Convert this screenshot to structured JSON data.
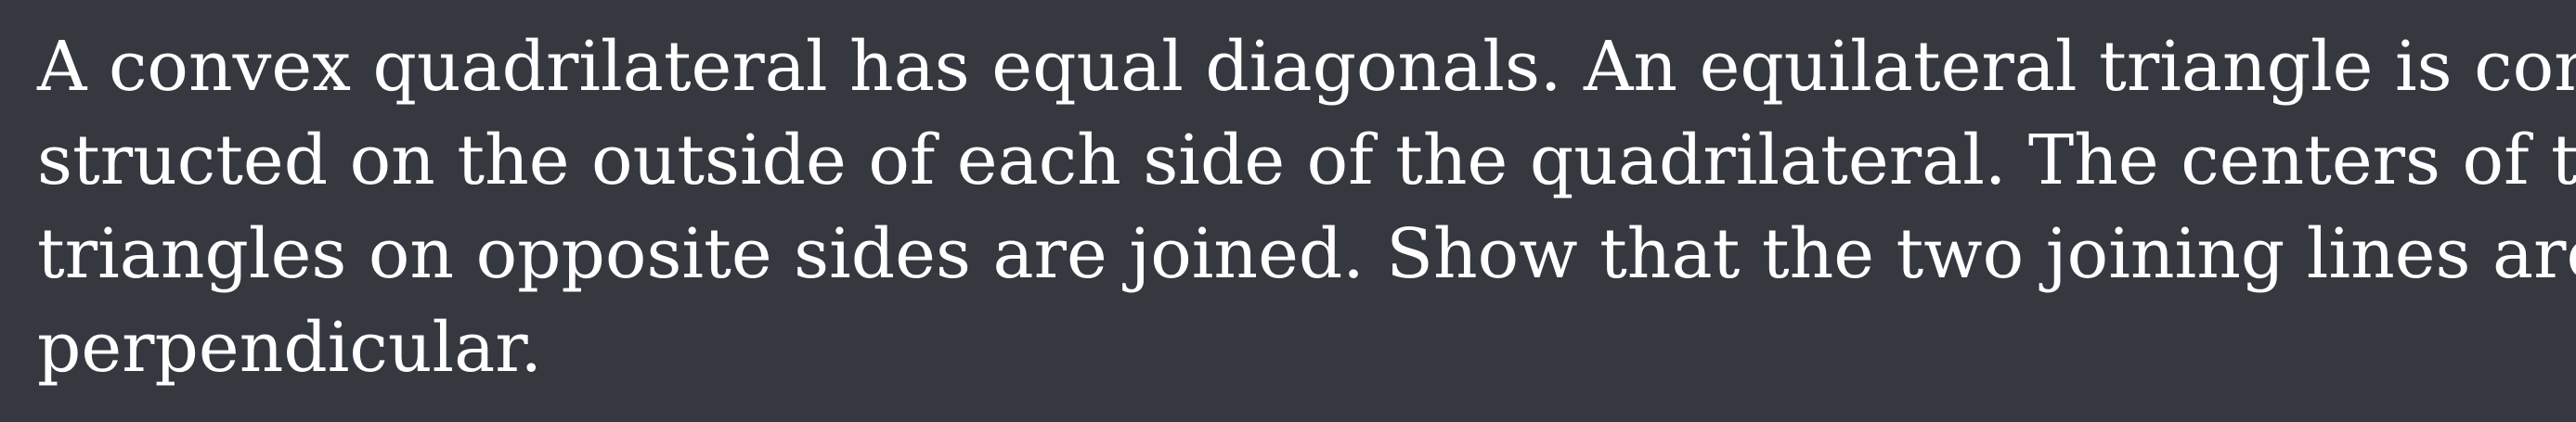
{
  "problem": {
    "lines": [
      "A convex quadrilateral has equal diagonals.  An equilateral triangle is con-",
      "structed on the outside of each side of the quadrilateral.  The centers of the",
      "triangles on opposite sides are joined.  Show that the two joining lines are",
      "perpendicular."
    ]
  },
  "colors": {
    "background": "#363840",
    "text": "#ffffff"
  }
}
